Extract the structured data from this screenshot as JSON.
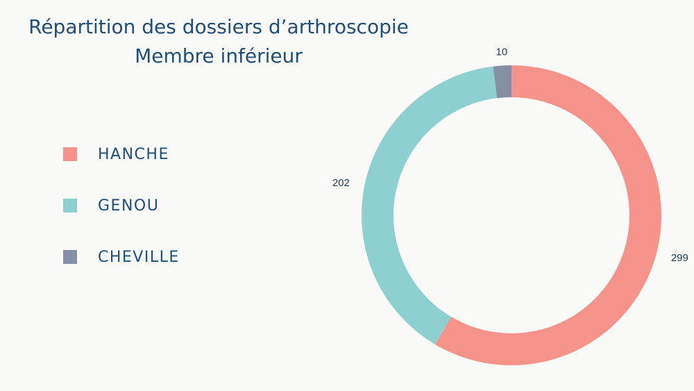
{
  "title_line1": "Répartition des dossiers d’arthroscopie",
  "title_line2": "Membre inférieur",
  "chart_data": {
    "type": "pie",
    "variant": "donut",
    "categories": [
      "HANCHE",
      "GENOU",
      "CHEVILLE"
    ],
    "values": [
      299,
      202,
      10
    ],
    "colors": [
      "#f5938a",
      "#8ecfcf",
      "#8590a6"
    ],
    "data_labels": [
      "299",
      "202",
      "10"
    ],
    "legend_position": "left",
    "start_angle": "top",
    "direction": "clockwise"
  }
}
